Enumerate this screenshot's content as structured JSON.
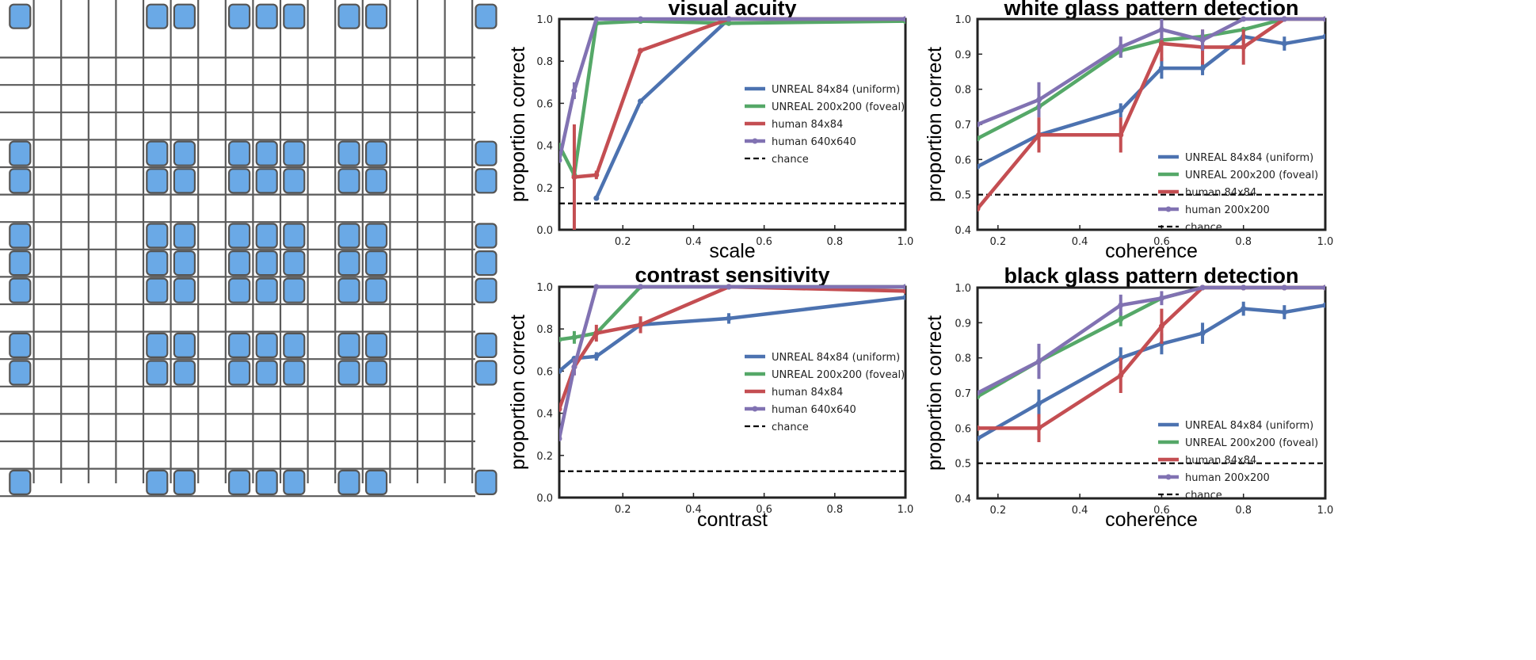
{
  "colors": {
    "unreal_uniform": "#4c72b0",
    "unreal_foveal": "#55a868",
    "human_low": "#c44e52",
    "human_high": "#8172b2",
    "chance": "#000000",
    "grid_line": "#5a5a5a",
    "grid_cell": "#6aa9e6",
    "grid_cell_border": "#555555"
  },
  "icons": [
    "grid-pattern-illustration"
  ],
  "illustration": {
    "rows": [
      2,
      0,
      0,
      0,
      0,
      1,
      1,
      0,
      1,
      1,
      1,
      0,
      1,
      1,
      0,
      0,
      0,
      1
    ],
    "cols": [
      1,
      0,
      0,
      0,
      0,
      1,
      1,
      0,
      1,
      1,
      1,
      0,
      1,
      1,
      0,
      0,
      0,
      1
    ]
  },
  "chart_data": [
    {
      "type": "line",
      "title": "visual acuity",
      "xlabel": "scale",
      "ylabel": "proportion correct",
      "xlim": [
        0.02,
        1.0
      ],
      "ylim": [
        0.0,
        1.0
      ],
      "xticks": [
        "0.2",
        "0.4",
        "0.6",
        "0.8",
        "1.0"
      ],
      "yticks": [
        "0.0",
        "0.2",
        "0.4",
        "0.6",
        "0.8",
        "1.0"
      ],
      "legend_position": "center-right",
      "chance": 0.125,
      "series": [
        {
          "name": "UNREAL 84x84 (uniform)",
          "color_key": "unreal_uniform",
          "points": [
            [
              0.125,
              0.15,
              0.0
            ],
            [
              0.25,
              0.61,
              0.0
            ],
            [
              0.5,
              1.0,
              0.0
            ],
            [
              1.0,
              1.0,
              0.0
            ]
          ]
        },
        {
          "name": "UNREAL 200x200 (foveal)",
          "color_key": "unreal_foveal",
          "points": [
            [
              0.02,
              0.4,
              0.0
            ],
            [
              0.0625,
              0.26,
              0.0
            ],
            [
              0.125,
              0.98,
              0.0
            ],
            [
              0.25,
              0.99,
              0.0
            ],
            [
              0.5,
              0.98,
              0.0
            ],
            [
              1.0,
              0.99,
              0.0
            ]
          ]
        },
        {
          "name": "human 84x84",
          "color_key": "human_low",
          "points": [
            [
              0.0625,
              0.25,
              0.25
            ],
            [
              0.125,
              0.26,
              0.02
            ],
            [
              0.25,
              0.85,
              0.01
            ],
            [
              0.5,
              1.0,
              0.0
            ],
            [
              1.0,
              1.0,
              0.0
            ]
          ]
        },
        {
          "name": "human 640x640",
          "color_key": "human_high",
          "points": [
            [
              0.02,
              0.33,
              0.0
            ],
            [
              0.0625,
              0.66,
              0.04
            ],
            [
              0.125,
              1.0,
              0.0
            ],
            [
              0.25,
              1.0,
              0.0
            ],
            [
              0.5,
              1.0,
              0.0
            ],
            [
              1.0,
              1.0,
              0.0
            ]
          ]
        }
      ],
      "legend": [
        "UNREAL 84x84 (uniform)",
        "UNREAL 200x200 (foveal)",
        "human 84x84",
        "human 640x640",
        "chance"
      ]
    },
    {
      "type": "line",
      "title": "contrast sensitivity",
      "xlabel": "contrast",
      "ylabel": "proportion correct",
      "xlim": [
        0.02,
        1.0
      ],
      "ylim": [
        0.0,
        1.0
      ],
      "xticks": [
        "0.2",
        "0.4",
        "0.6",
        "0.8",
        "1.0"
      ],
      "yticks": [
        "0.0",
        "0.2",
        "0.4",
        "0.6",
        "0.8",
        "1.0"
      ],
      "legend_position": "center-right",
      "chance": 0.125,
      "series": [
        {
          "name": "UNREAL 84x84 (uniform)",
          "color_key": "unreal_uniform",
          "points": [
            [
              0.02,
              0.6,
              0.0
            ],
            [
              0.0625,
              0.66,
              0.0
            ],
            [
              0.125,
              0.67,
              0.02
            ],
            [
              0.25,
              0.82,
              0.02
            ],
            [
              0.5,
              0.85,
              0.025
            ],
            [
              1.0,
              0.95,
              0.0
            ]
          ]
        },
        {
          "name": "UNREAL 200x200 (foveal)",
          "color_key": "unreal_foveal",
          "points": [
            [
              0.02,
              0.75,
              0.0
            ],
            [
              0.0625,
              0.76,
              0.03
            ],
            [
              0.125,
              0.78,
              0.0
            ],
            [
              0.25,
              1.0,
              0.0
            ],
            [
              0.5,
              1.0,
              0.0
            ],
            [
              1.0,
              1.0,
              0.0
            ]
          ]
        },
        {
          "name": "human 84x84",
          "color_key": "human_low",
          "points": [
            [
              0.02,
              0.42,
              0.0
            ],
            [
              0.0625,
              0.62,
              0.04
            ],
            [
              0.125,
              0.78,
              0.04
            ],
            [
              0.25,
              0.82,
              0.04
            ],
            [
              0.5,
              1.0,
              0.0
            ],
            [
              1.0,
              0.98,
              0.0
            ]
          ]
        },
        {
          "name": "human 640x640",
          "color_key": "human_high",
          "points": [
            [
              0.02,
              0.28,
              0.0
            ],
            [
              0.0625,
              0.62,
              0.04
            ],
            [
              0.125,
              1.0,
              0.0
            ],
            [
              0.25,
              1.0,
              0.0
            ],
            [
              0.5,
              1.0,
              0.0
            ],
            [
              1.0,
              1.0,
              0.0
            ]
          ]
        }
      ],
      "legend": [
        "UNREAL 84x84 (uniform)",
        "UNREAL 200x200 (foveal)",
        "human 84x84",
        "human 640x640",
        "chance"
      ]
    },
    {
      "type": "line",
      "title": "white glass pattern detection",
      "xlabel": "coherence",
      "ylabel": "proportion correct",
      "xlim": [
        0.15,
        1.0
      ],
      "ylim": [
        0.4,
        1.0
      ],
      "xticks": [
        "0.2",
        "0.4",
        "0.6",
        "0.8",
        "1.0"
      ],
      "yticks": [
        "0.4",
        "0.5",
        "0.6",
        "0.7",
        "0.8",
        "0.9",
        "1.0"
      ],
      "legend_position": "lower-right",
      "chance": 0.5,
      "series": [
        {
          "name": "UNREAL 84x84 (uniform)",
          "color_key": "unreal_uniform",
          "points": [
            [
              0.15,
              0.58,
              0.0
            ],
            [
              0.3,
              0.67,
              0.0
            ],
            [
              0.5,
              0.74,
              0.02
            ],
            [
              0.6,
              0.86,
              0.03
            ],
            [
              0.7,
              0.86,
              0.02
            ],
            [
              0.8,
              0.95,
              0.02
            ],
            [
              0.9,
              0.93,
              0.02
            ],
            [
              1.0,
              0.95,
              0.0
            ]
          ]
        },
        {
          "name": "UNREAL 200x200 (foveal)",
          "color_key": "unreal_foveal",
          "points": [
            [
              0.15,
              0.66,
              0.0
            ],
            [
              0.3,
              0.75,
              0.0
            ],
            [
              0.5,
              0.91,
              0.02
            ],
            [
              0.6,
              0.94,
              0.0
            ],
            [
              0.7,
              0.95,
              0.0
            ],
            [
              0.8,
              0.97,
              0.0
            ],
            [
              0.9,
              1.0,
              0.0
            ],
            [
              1.0,
              1.0,
              0.0
            ]
          ]
        },
        {
          "name": "human 84x84",
          "color_key": "human_low",
          "points": [
            [
              0.15,
              0.46,
              0.0
            ],
            [
              0.3,
              0.67,
              0.05
            ],
            [
              0.5,
              0.67,
              0.05
            ],
            [
              0.6,
              0.93,
              0.05
            ],
            [
              0.7,
              0.92,
              0.05
            ],
            [
              0.8,
              0.92,
              0.05
            ],
            [
              0.9,
              1.0,
              0.0
            ],
            [
              1.0,
              1.0,
              0.0
            ]
          ]
        },
        {
          "name": "human 200x200",
          "color_key": "human_high",
          "points": [
            [
              0.15,
              0.7,
              0.0
            ],
            [
              0.3,
              0.77,
              0.05
            ],
            [
              0.5,
              0.92,
              0.03
            ],
            [
              0.6,
              0.97,
              0.03
            ],
            [
              0.7,
              0.94,
              0.03
            ],
            [
              0.8,
              1.0,
              0.0
            ],
            [
              0.9,
              1.0,
              0.0
            ],
            [
              1.0,
              1.0,
              0.0
            ]
          ]
        }
      ],
      "legend": [
        "UNREAL 84x84 (uniform)",
        "UNREAL 200x200 (foveal)",
        "human 84x84",
        "human 200x200",
        "chance"
      ]
    },
    {
      "type": "line",
      "title": "black glass pattern detection",
      "xlabel": "coherence",
      "ylabel": "proportion correct",
      "xlim": [
        0.15,
        1.0
      ],
      "ylim": [
        0.4,
        1.0
      ],
      "xticks": [
        "0.2",
        "0.4",
        "0.6",
        "0.8",
        "1.0"
      ],
      "yticks": [
        "0.4",
        "0.5",
        "0.6",
        "0.7",
        "0.8",
        "0.9",
        "1.0"
      ],
      "legend_position": "lower-right",
      "chance": 0.5,
      "series": [
        {
          "name": "UNREAL 84x84 (uniform)",
          "color_key": "unreal_uniform",
          "points": [
            [
              0.15,
              0.57,
              0.0
            ],
            [
              0.3,
              0.67,
              0.04
            ],
            [
              0.5,
              0.8,
              0.03
            ],
            [
              0.6,
              0.84,
              0.03
            ],
            [
              0.7,
              0.87,
              0.03
            ],
            [
              0.8,
              0.94,
              0.02
            ],
            [
              0.9,
              0.93,
              0.02
            ],
            [
              1.0,
              0.95,
              0.0
            ]
          ]
        },
        {
          "name": "UNREAL 200x200 (foveal)",
          "color_key": "unreal_foveal",
          "points": [
            [
              0.15,
              0.69,
              0.0
            ],
            [
              0.3,
              0.79,
              0.0
            ],
            [
              0.5,
              0.91,
              0.02
            ],
            [
              0.6,
              0.97,
              0.0
            ],
            [
              0.7,
              1.0,
              0.0
            ],
            [
              0.8,
              1.0,
              0.0
            ],
            [
              0.9,
              1.0,
              0.0
            ],
            [
              1.0,
              1.0,
              0.0
            ]
          ]
        },
        {
          "name": "human 84x84",
          "color_key": "human_low",
          "points": [
            [
              0.15,
              0.6,
              0.0
            ],
            [
              0.3,
              0.6,
              0.04
            ],
            [
              0.5,
              0.75,
              0.05
            ],
            [
              0.6,
              0.89,
              0.05
            ],
            [
              0.7,
              1.0,
              0.0
            ],
            [
              0.8,
              1.0,
              0.0
            ],
            [
              0.9,
              1.0,
              0.0
            ],
            [
              1.0,
              1.0,
              0.0
            ]
          ]
        },
        {
          "name": "human 200x200",
          "color_key": "human_high",
          "points": [
            [
              0.15,
              0.7,
              0.0
            ],
            [
              0.3,
              0.79,
              0.05
            ],
            [
              0.5,
              0.95,
              0.03
            ],
            [
              0.6,
              0.97,
              0.02
            ],
            [
              0.7,
              1.0,
              0.0
            ],
            [
              0.8,
              1.0,
              0.0
            ],
            [
              0.9,
              1.0,
              0.0
            ],
            [
              1.0,
              1.0,
              0.0
            ]
          ]
        }
      ],
      "legend": [
        "UNREAL 84x84 (uniform)",
        "UNREAL 200x200 (foveal)",
        "human 84x84",
        "human 200x200",
        "chance"
      ]
    }
  ]
}
